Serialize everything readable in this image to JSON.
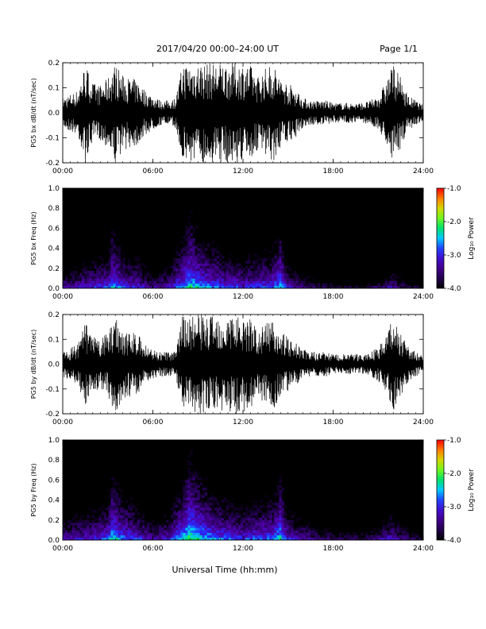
{
  "header": {
    "title": "2017/04/20  00:00–24:00 UT",
    "page_label": "Page 1/1"
  },
  "footer": {
    "xaxis_title": "Universal Time (hh:mm)"
  },
  "colors": {
    "background": "#ffffff",
    "trace": "#000000",
    "spectrogram_floor": "#000000"
  },
  "chart_data": [
    {
      "type": "line",
      "ylabel": "PG5 bx dB/dt (nT/sec)",
      "xlim": [
        0,
        24
      ],
      "ylim": [
        -0.2,
        0.2
      ],
      "x_tick_labels": [
        "00:00",
        "06:00",
        "12:00",
        "18:00",
        "24:00"
      ],
      "y_tick_labels": [
        "0.2",
        "0.1",
        "0.0",
        "-0.1",
        "-0.2"
      ],
      "y_tick_values": [
        0.2,
        0.1,
        0.0,
        -0.1,
        -0.2
      ],
      "series": [
        {
          "x": [
            0,
            1,
            1.5,
            2,
            2.5,
            3,
            3.5,
            4,
            4.5,
            5,
            5.5,
            6,
            6.5,
            7,
            7.5,
            8,
            8.5,
            9,
            9.5,
            10,
            10.5,
            11,
            11.5,
            12,
            12.5,
            13,
            13.5,
            14,
            14.5,
            15,
            15.5,
            16,
            16.5,
            17,
            17.5,
            18,
            18.5,
            19,
            19.5,
            20,
            20.5,
            21,
            21.5,
            22,
            22.5,
            23,
            24
          ],
          "values": [
            0.06,
            0.09,
            0.2,
            0.12,
            0.11,
            0.14,
            0.2,
            0.15,
            0.14,
            0.13,
            0.09,
            0.07,
            0.05,
            0.05,
            0.06,
            0.2,
            0.2,
            0.2,
            0.2,
            0.2,
            0.2,
            0.2,
            0.2,
            0.2,
            0.19,
            0.15,
            0.18,
            0.2,
            0.14,
            0.12,
            0.1,
            0.06,
            0.05,
            0.05,
            0.05,
            0.04,
            0.04,
            0.04,
            0.04,
            0.04,
            0.05,
            0.07,
            0.12,
            0.2,
            0.14,
            0.07,
            0.03
          ]
        }
      ]
    },
    {
      "type": "heatmap",
      "ylabel": "PG5 bx Freq (Hz)",
      "xlim": [
        0,
        24
      ],
      "ylim": [
        0,
        1.0
      ],
      "x_tick_labels": [
        "00:00",
        "06:00",
        "12:00",
        "18:00",
        "24:00"
      ],
      "y_tick_labels": [
        "1.0",
        "0.8",
        "0.6",
        "0.4",
        "0.2",
        "0.0"
      ],
      "y_tick_values": [
        1.0,
        0.8,
        0.6,
        0.4,
        0.2,
        0.0
      ],
      "colorbar": {
        "label": "Log₁₀ Power",
        "range": [
          -4.0,
          -1.0
        ],
        "tick_labels": [
          "-1.0",
          "-2.0",
          "-3.0",
          "-4.0"
        ],
        "tick_values": [
          -1.0,
          -2.0,
          -3.0,
          -4.0
        ],
        "colormap": "rainbow"
      },
      "band_hours": [
        0,
        1,
        2,
        3,
        3.3,
        4,
        5,
        6,
        7,
        8,
        8.5,
        9,
        10,
        11,
        12,
        13,
        14,
        14.5,
        15,
        16,
        17,
        18,
        19,
        20,
        21,
        21.8,
        22.5,
        24
      ],
      "band_level": [
        -3.0,
        -2.8,
        -2.6,
        -2.5,
        -2.0,
        -2.5,
        -2.6,
        -3.0,
        -2.8,
        -2.2,
        -1.8,
        -2.1,
        -2.3,
        -2.5,
        -2.6,
        -2.5,
        -2.4,
        -2.0,
        -2.8,
        -3.1,
        -3.3,
        -3.4,
        -3.5,
        -3.5,
        -3.3,
        -2.9,
        -3.2,
        -3.6
      ]
    },
    {
      "type": "line",
      "ylabel": "PG5 by dB/dt (nT/sec)",
      "xlim": [
        0,
        24
      ],
      "ylim": [
        -0.2,
        0.2
      ],
      "x_tick_labels": [
        "00:00",
        "06:00",
        "12:00",
        "18:00",
        "24:00"
      ],
      "y_tick_labels": [
        "0.2",
        "0.1",
        "0.0",
        "-0.1",
        "-0.2"
      ],
      "y_tick_values": [
        0.2,
        0.1,
        0.0,
        -0.1,
        -0.2
      ],
      "series": [
        {
          "x": [
            0,
            1,
            1.5,
            2,
            2.5,
            3,
            3.5,
            4,
            4.5,
            5,
            5.5,
            6,
            6.5,
            7,
            7.5,
            8,
            8.5,
            9,
            9.5,
            10,
            10.5,
            11,
            11.5,
            12,
            12.5,
            13,
            13.5,
            14,
            14.5,
            15,
            15.5,
            16,
            16.5,
            17,
            17.5,
            18,
            18.5,
            19,
            19.5,
            20,
            20.5,
            21,
            21.5,
            22,
            22.5,
            23,
            24
          ],
          "values": [
            0.05,
            0.08,
            0.17,
            0.11,
            0.1,
            0.13,
            0.2,
            0.14,
            0.13,
            0.12,
            0.08,
            0.06,
            0.05,
            0.05,
            0.05,
            0.2,
            0.2,
            0.2,
            0.2,
            0.2,
            0.2,
            0.2,
            0.2,
            0.2,
            0.18,
            0.14,
            0.16,
            0.2,
            0.13,
            0.11,
            0.09,
            0.06,
            0.05,
            0.05,
            0.05,
            0.04,
            0.04,
            0.04,
            0.04,
            0.04,
            0.05,
            0.07,
            0.11,
            0.19,
            0.13,
            0.07,
            0.03
          ]
        }
      ]
    },
    {
      "type": "heatmap",
      "ylabel": "PG5 by Freq (Hz)",
      "xlim": [
        0,
        24
      ],
      "ylim": [
        0,
        1.0
      ],
      "x_tick_labels": [
        "00:00",
        "06:00",
        "12:00",
        "18:00",
        "24:00"
      ],
      "y_tick_labels": [
        "1.0",
        "0.8",
        "0.6",
        "0.4",
        "0.2",
        "0.0"
      ],
      "y_tick_values": [
        1.0,
        0.8,
        0.6,
        0.4,
        0.2,
        0.0
      ],
      "colorbar": {
        "label": "Log₁₀ Power",
        "range": [
          -4.0,
          -1.0
        ],
        "tick_labels": [
          "-1.0",
          "-2.0",
          "-3.0",
          "-4.0"
        ],
        "tick_values": [
          -1.0,
          -2.0,
          -3.0,
          -4.0
        ],
        "colormap": "rainbow"
      },
      "band_hours": [
        0,
        1,
        2,
        3,
        3.3,
        4,
        5,
        6,
        7,
        8,
        8.5,
        9,
        10,
        11,
        12,
        13,
        14,
        14.5,
        15,
        16,
        17,
        18,
        19,
        20,
        21,
        21.8,
        22.5,
        24
      ],
      "band_level": [
        -2.9,
        -2.7,
        -2.6,
        -2.4,
        -1.9,
        -2.3,
        -2.5,
        -2.9,
        -2.7,
        -2.0,
        -1.6,
        -1.9,
        -2.2,
        -2.4,
        -2.5,
        -2.4,
        -2.3,
        -1.9,
        -2.6,
        -2.9,
        -3.1,
        -3.2,
        -3.3,
        -3.3,
        -3.1,
        -2.7,
        -3.0,
        -3.5
      ]
    }
  ]
}
